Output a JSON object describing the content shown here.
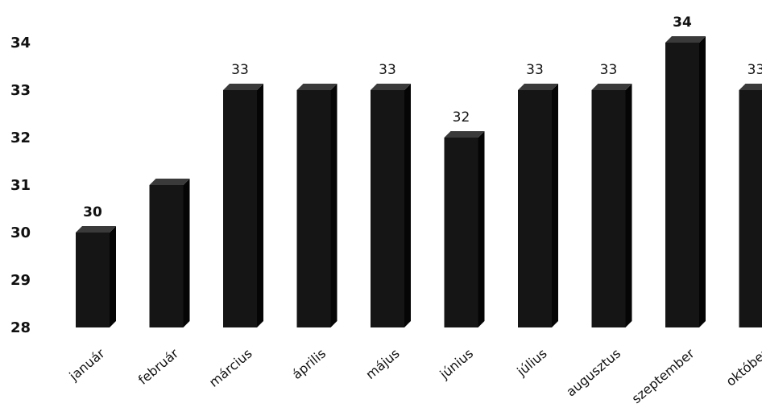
{
  "chart_data": {
    "type": "bar",
    "title": "",
    "xlabel": "",
    "ylabel": "",
    "ylim": [
      28,
      34
    ],
    "yticks": [
      "28",
      "29",
      "30",
      "31",
      "32",
      "33",
      "34"
    ],
    "categories": [
      "január",
      "február",
      "március",
      "április",
      "május",
      "június",
      "július",
      "augusztus",
      "szeptember",
      "október"
    ],
    "values": [
      30,
      31,
      33,
      33,
      33,
      32,
      33,
      33,
      34,
      33
    ],
    "data_labels": [
      "30",
      "",
      "33",
      "",
      "33",
      "32",
      "33",
      "33",
      "34",
      "33"
    ],
    "bold_labels": [
      true,
      false,
      false,
      false,
      false,
      false,
      false,
      false,
      true,
      false
    ],
    "grid": false,
    "legend": "none",
    "colors": {
      "bar_front": "#151515",
      "bar_top": "#3a3a3a",
      "bar_side": "#050505",
      "text": "#111111"
    }
  }
}
